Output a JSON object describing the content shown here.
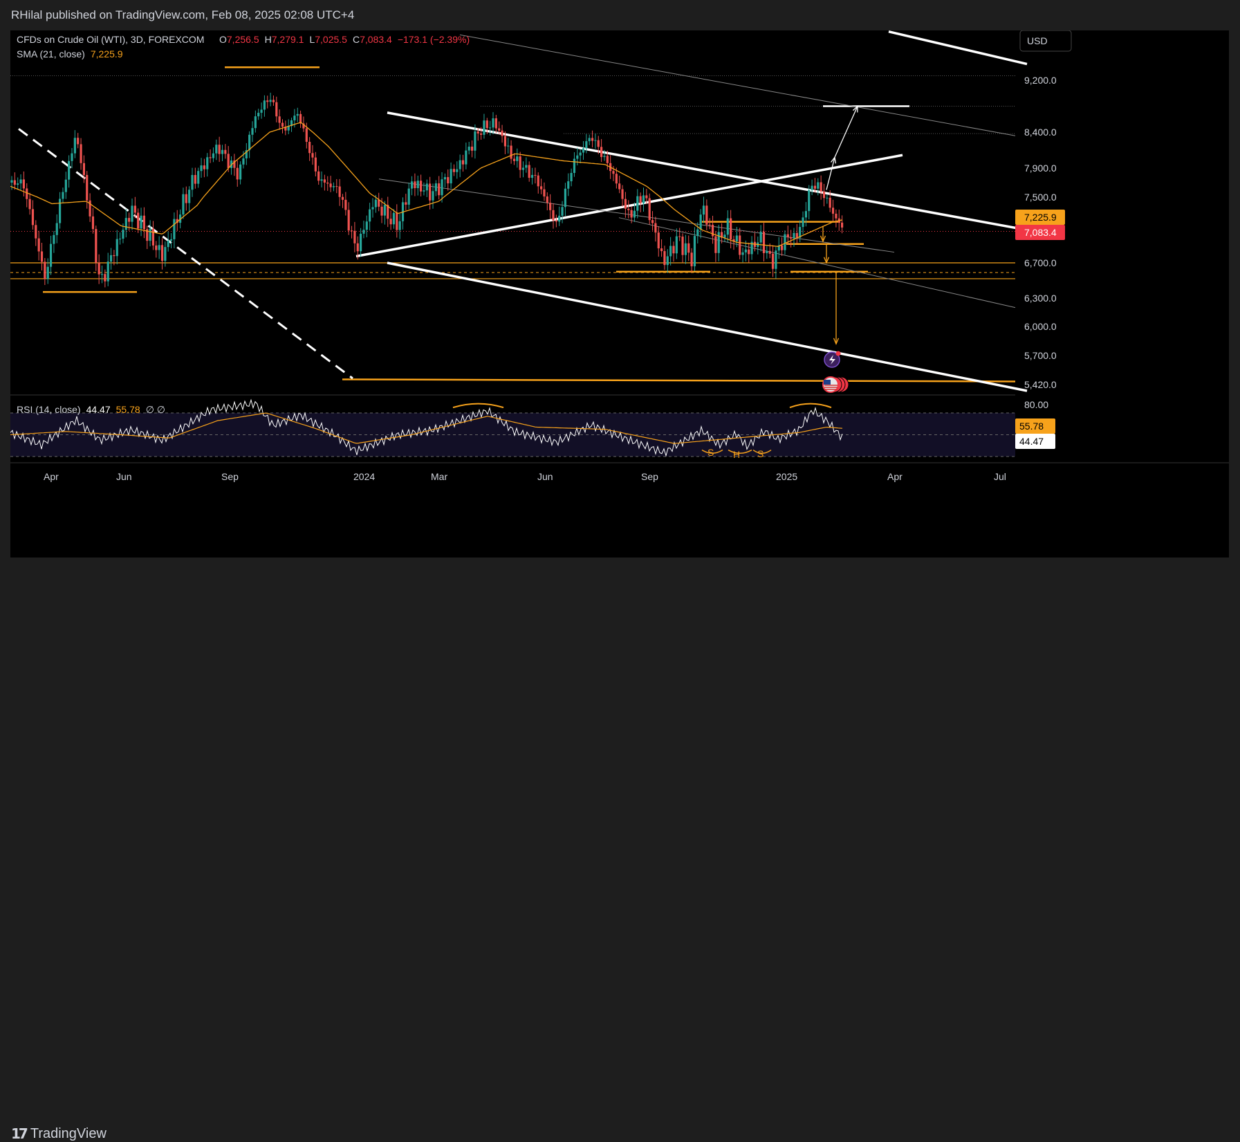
{
  "header": {
    "publisher": "RHilal published on TradingView.com, Feb 08, 2025 02:08 UTC+4"
  },
  "legend": {
    "symbol": "CFDs on Crude Oil (WTI), 3D, FOREXCOM",
    "o_label": "O",
    "o": "7,256.5",
    "h_label": "H",
    "h": "7,279.1",
    "l_label": "L",
    "l": "7,025.5",
    "c_label": "C",
    "c": "7,083.4",
    "change": "−173.1 (−2.39%)",
    "sma_label": "SMA (21, close)",
    "sma_value": "7,225.9"
  },
  "currency_button": "USD",
  "price_axis": {
    "ticks": [
      "9,200.0",
      "8,400.0",
      "7,900.0",
      "7,500.0",
      "6,700.0",
      "6,300.0",
      "6,000.0",
      "5,700.0",
      "5,420.0"
    ],
    "sma_tag": "7,225.9",
    "last_tag": "7,083.4"
  },
  "rsi": {
    "label": "RSI (14, close)",
    "value": "44.47",
    "ma_value": "55.78",
    "extra": "∅ ∅",
    "axis_top": "80.00",
    "ma_tag": "55.78",
    "value_tag": "44.47",
    "pattern_labels": [
      "S",
      "H",
      "S"
    ]
  },
  "time_axis": {
    "labels": [
      "Apr",
      "Jun",
      "Sep",
      "2024",
      "Mar",
      "Jun",
      "Sep",
      "2025",
      "Apr",
      "Jul"
    ]
  },
  "footer": {
    "brand": "TradingView"
  },
  "colors": {
    "up": "#26a69a",
    "down": "#ef5350",
    "sma": "#f7a21b",
    "bg": "#000000",
    "chrome": "#1e1e1e",
    "text": "#d1d4dc",
    "last": "#f23645",
    "line": "#ffffff"
  },
  "chart_data": {
    "type": "candlestick",
    "title": "CFDs on Crude Oil (WTI), 3D, FOREXCOM",
    "timeframe": "3D",
    "ohlc_last": {
      "open": 7256.5,
      "high": 7279.1,
      "low": 7025.5,
      "close": 7083.4
    },
    "price_anchors": [
      {
        "x": 18,
        "p": 7700
      },
      {
        "x": 50,
        "p": 6520
      },
      {
        "x": 95,
        "p": 8380
      },
      {
        "x": 130,
        "p": 6450
      },
      {
        "x": 175,
        "p": 7350
      },
      {
        "x": 220,
        "p": 6780
      },
      {
        "x": 265,
        "p": 7750
      },
      {
        "x": 300,
        "p": 8200
      },
      {
        "x": 330,
        "p": 7800
      },
      {
        "x": 355,
        "p": 8650
      },
      {
        "x": 375,
        "p": 8950
      },
      {
        "x": 395,
        "p": 8400
      },
      {
        "x": 415,
        "p": 8700
      },
      {
        "x": 445,
        "p": 7750
      },
      {
        "x": 475,
        "p": 7600
      },
      {
        "x": 500,
        "p": 6850
      },
      {
        "x": 525,
        "p": 7450
      },
      {
        "x": 560,
        "p": 7150
      },
      {
        "x": 580,
        "p": 7700
      },
      {
        "x": 610,
        "p": 7550
      },
      {
        "x": 650,
        "p": 7950
      },
      {
        "x": 680,
        "p": 8450
      },
      {
        "x": 700,
        "p": 8550
      },
      {
        "x": 725,
        "p": 8050
      },
      {
        "x": 760,
        "p": 7750
      },
      {
        "x": 790,
        "p": 7150
      },
      {
        "x": 815,
        "p": 8000
      },
      {
        "x": 840,
        "p": 8350
      },
      {
        "x": 870,
        "p": 7850
      },
      {
        "x": 895,
        "p": 7250
      },
      {
        "x": 915,
        "p": 7550
      },
      {
        "x": 945,
        "p": 6700
      },
      {
        "x": 965,
        "p": 7000
      },
      {
        "x": 985,
        "p": 6750
      },
      {
        "x": 1000,
        "p": 7400
      },
      {
        "x": 1020,
        "p": 6900
      },
      {
        "x": 1035,
        "p": 7150
      },
      {
        "x": 1060,
        "p": 6800
      },
      {
        "x": 1085,
        "p": 7000
      },
      {
        "x": 1100,
        "p": 6700
      },
      {
        "x": 1120,
        "p": 7000
      },
      {
        "x": 1140,
        "p": 7050
      },
      {
        "x": 1160,
        "p": 7700
      },
      {
        "x": 1172,
        "p": 7600
      },
      {
        "x": 1190,
        "p": 7300
      },
      {
        "x": 1205,
        "p": 7083
      }
    ],
    "sma_anchors": [
      {
        "x": 0,
        "p": 7650
      },
      {
        "x": 60,
        "p": 7420
      },
      {
        "x": 110,
        "p": 7450
      },
      {
        "x": 160,
        "p": 7150
      },
      {
        "x": 220,
        "p": 7050
      },
      {
        "x": 270,
        "p": 7400
      },
      {
        "x": 320,
        "p": 7950
      },
      {
        "x": 375,
        "p": 8400
      },
      {
        "x": 420,
        "p": 8550
      },
      {
        "x": 460,
        "p": 8200
      },
      {
        "x": 520,
        "p": 7550
      },
      {
        "x": 560,
        "p": 7300
      },
      {
        "x": 620,
        "p": 7450
      },
      {
        "x": 680,
        "p": 7900
      },
      {
        "x": 730,
        "p": 8100
      },
      {
        "x": 800,
        "p": 8000
      },
      {
        "x": 860,
        "p": 7950
      },
      {
        "x": 920,
        "p": 7650
      },
      {
        "x": 960,
        "p": 7350
      },
      {
        "x": 1000,
        "p": 7100
      },
      {
        "x": 1050,
        "p": 6950
      },
      {
        "x": 1110,
        "p": 6900
      },
      {
        "x": 1150,
        "p": 7050
      },
      {
        "x": 1190,
        "p": 7200
      },
      {
        "x": 1205,
        "p": 7226
      }
    ],
    "rsi_anchors": [
      {
        "x": 0,
        "v": 52
      },
      {
        "x": 45,
        "v": 40
      },
      {
        "x": 95,
        "v": 62
      },
      {
        "x": 130,
        "v": 43
      },
      {
        "x": 175,
        "v": 52
      },
      {
        "x": 220,
        "v": 42
      },
      {
        "x": 290,
        "v": 70
      },
      {
        "x": 355,
        "v": 76
      },
      {
        "x": 380,
        "v": 56
      },
      {
        "x": 420,
        "v": 66
      },
      {
        "x": 470,
        "v": 48
      },
      {
        "x": 500,
        "v": 34
      },
      {
        "x": 560,
        "v": 50
      },
      {
        "x": 610,
        "v": 55
      },
      {
        "x": 690,
        "v": 74
      },
      {
        "x": 730,
        "v": 55
      },
      {
        "x": 790,
        "v": 46
      },
      {
        "x": 840,
        "v": 62
      },
      {
        "x": 895,
        "v": 48
      },
      {
        "x": 945,
        "v": 36
      },
      {
        "x": 1000,
        "v": 56
      },
      {
        "x": 1025,
        "v": 42
      },
      {
        "x": 1050,
        "v": 52
      },
      {
        "x": 1065,
        "v": 40
      },
      {
        "x": 1090,
        "v": 54
      },
      {
        "x": 1110,
        "v": 46
      },
      {
        "x": 1140,
        "v": 54
      },
      {
        "x": 1160,
        "v": 72
      },
      {
        "x": 1180,
        "v": 62
      },
      {
        "x": 1205,
        "v": 44.5
      }
    ],
    "rsi_ma_anchors": [
      {
        "x": 0,
        "v": 50
      },
      {
        "x": 80,
        "v": 53
      },
      {
        "x": 160,
        "v": 50
      },
      {
        "x": 230,
        "v": 47
      },
      {
        "x": 300,
        "v": 63
      },
      {
        "x": 370,
        "v": 70
      },
      {
        "x": 440,
        "v": 56
      },
      {
        "x": 500,
        "v": 42
      },
      {
        "x": 580,
        "v": 50
      },
      {
        "x": 690,
        "v": 67
      },
      {
        "x": 760,
        "v": 57
      },
      {
        "x": 860,
        "v": 55
      },
      {
        "x": 960,
        "v": 42
      },
      {
        "x": 1050,
        "v": 47
      },
      {
        "x": 1140,
        "v": 52
      },
      {
        "x": 1180,
        "v": 57
      },
      {
        "x": 1205,
        "v": 55.8
      }
    ],
    "rsi_levels": [
      70,
      50,
      30
    ],
    "trendlines": [
      {
        "name": "upper-channel-line",
        "x1": 545,
        "p1": 8700,
        "x2": 1470,
        "p2": 7100
      },
      {
        "name": "lower-channel-line",
        "x1": 545,
        "p1": 6700,
        "x2": 1470,
        "p2": 5360
      },
      {
        "name": "top-right-line",
        "x1": 1270,
        "p1": 9950,
        "x2": 1470,
        "p2": 9450
      },
      {
        "name": "rising-support-line",
        "x1": 500,
        "p1": 6780,
        "x2": 1290,
        "p2": 8080
      },
      {
        "name": "dashed-downtrend-line",
        "x1": 12,
        "p1": 8450,
        "x2": 495,
        "p2": 5480
      }
    ],
    "horizontal_levels": [
      {
        "name": "support-6700",
        "p": 6700
      },
      {
        "name": "support-6520",
        "p": 6520
      },
      {
        "name": "target-5450",
        "p": 5450
      },
      {
        "name": "target-8800",
        "p": 8800
      }
    ]
  }
}
